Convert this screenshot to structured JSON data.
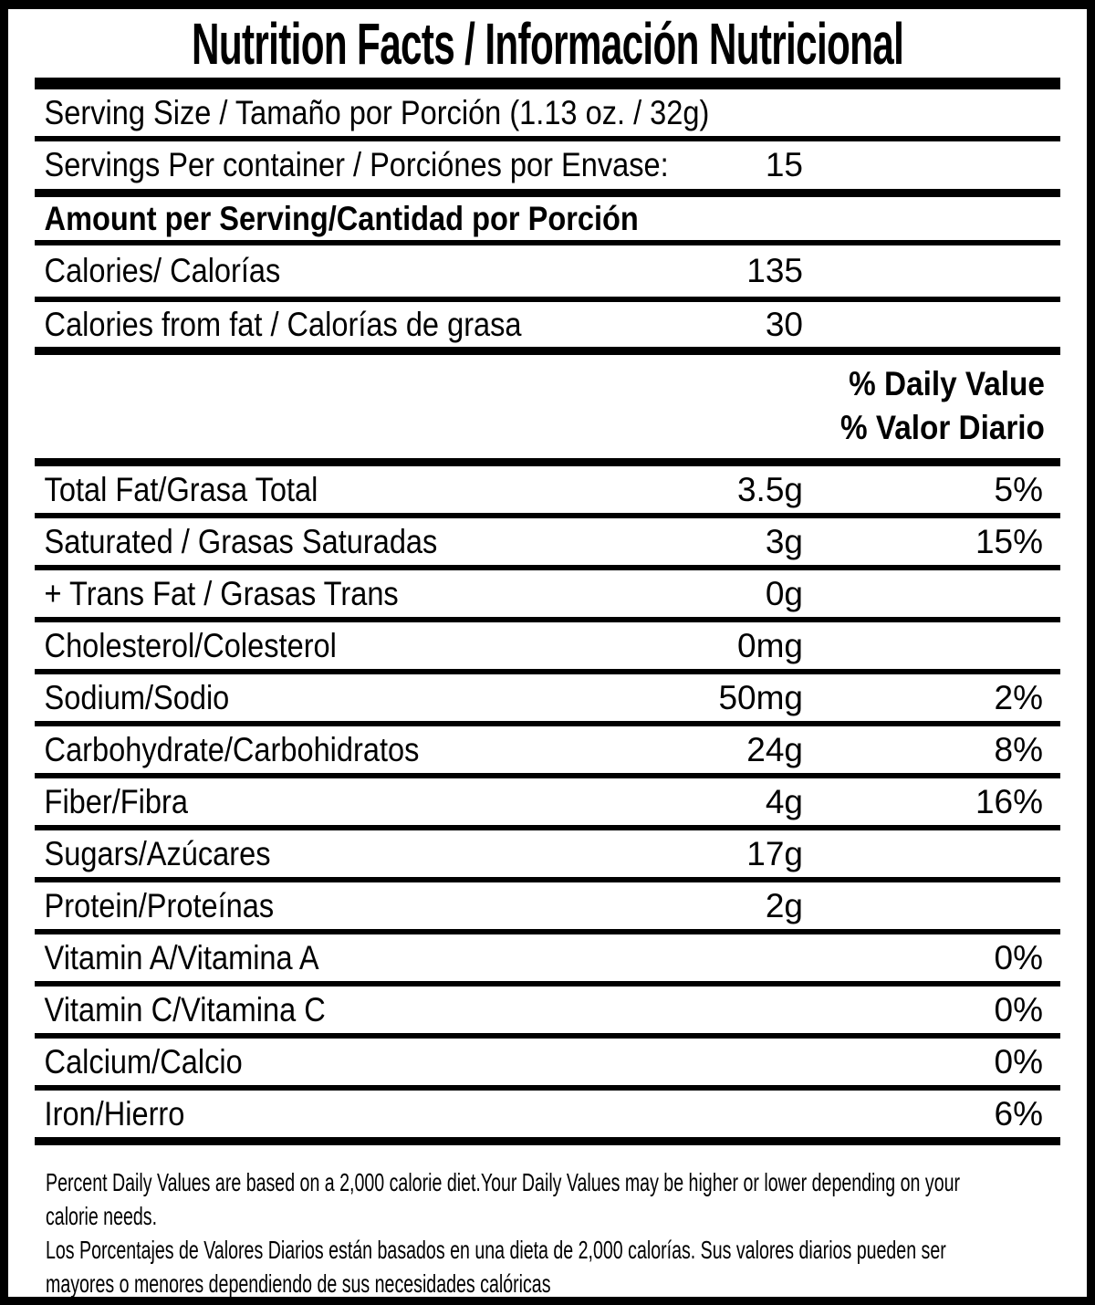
{
  "label": {
    "title": "Nutrition Facts / Información Nutricional",
    "rows": {
      "serving_size": "Serving Size / Tamaño por Porción (1.13 oz. / 32g)",
      "servings_per_container": {
        "label": "Servings Per container / Porciónes por Envase:",
        "value": "15"
      },
      "amount_per_serving": "Amount per Serving/Cantidad por Porción",
      "calories": {
        "label": "Calories/ Calorías",
        "value": "135"
      },
      "calories_from_fat": {
        "label": "Calories from fat / Calorías de grasa",
        "value": "30"
      }
    },
    "dv_header": {
      "line1": "% Daily Value",
      "line2": "% Valor Diario"
    },
    "nutrients": [
      {
        "label": "Total Fat/Grasa Total",
        "amount": "3.5g",
        "dv": "5%"
      },
      {
        "label": "Saturated / Grasas Saturadas",
        "amount": "3g",
        "dv": "15%"
      },
      {
        "label": "+ Trans Fat / Grasas Trans",
        "amount": "0g",
        "dv": ""
      },
      {
        "label": "Cholesterol/Colesterol",
        "amount": "0mg",
        "dv": ""
      },
      {
        "label": "Sodium/Sodio",
        "amount": "50mg",
        "dv": "2%"
      },
      {
        "label": "Carbohydrate/Carbohidratos",
        "amount": "24g",
        "dv": "8%"
      },
      {
        "label": "Fiber/Fibra",
        "amount": "4g",
        "dv": "16%"
      },
      {
        "label": "Sugars/Azúcares",
        "amount": "17g",
        "dv": ""
      },
      {
        "label": "Protein/Proteínas",
        "amount": "2g",
        "dv": ""
      },
      {
        "label": "Vitamin A/Vitamina A",
        "amount": "",
        "dv": "0%"
      },
      {
        "label": "Vitamin C/Vitamina C",
        "amount": "",
        "dv": "0%"
      },
      {
        "label": "Calcium/Calcio",
        "amount": "",
        "dv": "0%"
      },
      {
        "label": "Iron/Hierro",
        "amount": "",
        "dv": "6%"
      }
    ],
    "footnote": {
      "lines": [
        "Percent Daily Values are based on a 2,000 calorie diet.Your Daily Values may be higher or lower depending on your",
        "calorie needs.",
        "Los Porcentajes de Valores Diarios están basados en una dieta de 2,000 calorías. Sus valores diarios pueden ser",
        "mayores o menores dependiendo de sus necesidades calóricas"
      ]
    },
    "colors": {
      "text": "#000000",
      "background": "#ffffff"
    }
  }
}
